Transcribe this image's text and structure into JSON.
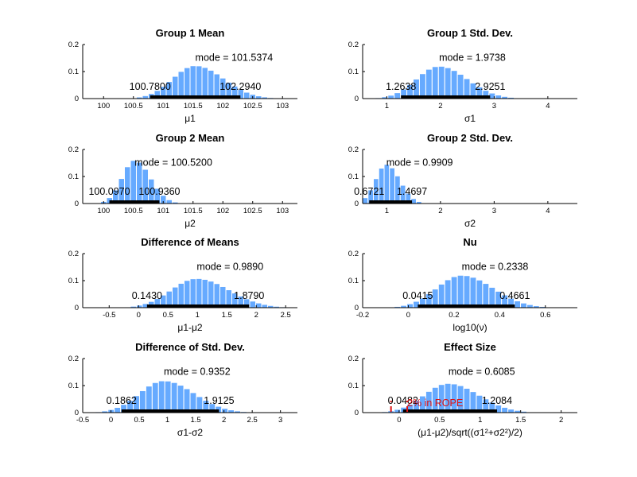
{
  "chart_data": [
    {
      "type": "bar",
      "title": "Group 1 Mean",
      "xlabel": "μ1",
      "xlim": [
        99.65,
        103.25
      ],
      "ylim": [
        0,
        0.2
      ],
      "xticks": [
        100,
        100.5,
        101,
        101.5,
        102,
        102.5,
        103
      ],
      "yticks": [
        0,
        0.1,
        0.2
      ],
      "mode": 101.5374,
      "mode_label": "mode = 101.5374",
      "hdi": [
        100.78,
        102.294
      ],
      "hdi_labels": [
        "100.7800",
        "102.2940"
      ],
      "peak_density": 0.122,
      "spread": 0.38,
      "bins": 36
    },
    {
      "type": "bar",
      "title": "Group 1 Std. Dev.",
      "xlabel": "σ1",
      "xlim": [
        0.55,
        4.55
      ],
      "ylim": [
        0,
        0.2
      ],
      "xticks": [
        1,
        2,
        3,
        4
      ],
      "yticks": [
        0,
        0.1,
        0.2
      ],
      "mode": 1.9738,
      "mode_label": "mode = 1.9738",
      "hdi": [
        1.2638,
        2.9251
      ],
      "hdi_labels": [
        "1.2638",
        "2.9251"
      ],
      "peak_density": 0.12,
      "spread": 0.42,
      "bins": 34
    },
    {
      "type": "bar",
      "title": "Group 2 Mean",
      "xlabel": "μ2",
      "xlim": [
        99.65,
        103.25
      ],
      "ylim": [
        0,
        0.2
      ],
      "xticks": [
        100,
        100.5,
        101,
        101.5,
        102,
        102.5,
        103
      ],
      "yticks": [
        0,
        0.1,
        0.2
      ],
      "mode": 100.52,
      "mode_label": "mode = 100.5200",
      "hdi": [
        100.097,
        100.936
      ],
      "hdi_labels": [
        "100.0970",
        "100.9360"
      ],
      "peak_density": 0.16,
      "spread": 0.21,
      "bins": 36
    },
    {
      "type": "bar",
      "title": "Group 2 Std. Dev.",
      "xlabel": "σ2",
      "xlim": [
        0.55,
        4.55
      ],
      "ylim": [
        0,
        0.2
      ],
      "xticks": [
        1,
        2,
        3,
        4
      ],
      "yticks": [
        0,
        0.1,
        0.2
      ],
      "mode": 0.9909,
      "mode_label": "mode = 0.9909",
      "hdi": [
        0.6721,
        1.4697
      ],
      "hdi_labels": [
        "0.6721",
        "1.4697"
      ],
      "peak_density": 0.145,
      "spread": 0.2,
      "bins": 40
    },
    {
      "type": "bar",
      "title": "Difference of Means",
      "xlabel": "μ1-μ2",
      "xlim": [
        -0.95,
        2.7
      ],
      "ylim": [
        0,
        0.2
      ],
      "xticks": [
        -0.5,
        0,
        0.5,
        1,
        1.5,
        2,
        2.5
      ],
      "yticks": [
        0,
        0.1,
        0.2
      ],
      "mode": 0.989,
      "mode_label": "mode = 0.9890",
      "hdi": [
        0.143,
        1.879
      ],
      "hdi_labels": [
        "0.1430",
        "1.8790"
      ],
      "peak_density": 0.108,
      "spread": 0.44,
      "bins": 36
    },
    {
      "type": "bar",
      "title": "Nu",
      "xlabel": "log10(ν)",
      "xlim": [
        -0.2,
        0.74
      ],
      "ylim": [
        0,
        0.2
      ],
      "xticks": [
        -0.2,
        0,
        0.2,
        0.4,
        0.6
      ],
      "yticks": [
        0,
        0.1,
        0.2
      ],
      "mode": 0.2338,
      "mode_label": "mode = 0.2338",
      "hdi": [
        0.0415,
        0.4661
      ],
      "hdi_labels": [
        "0.0415",
        "0.4661"
      ],
      "peak_density": 0.12,
      "spread": 0.11,
      "bins": 34
    },
    {
      "type": "bar",
      "title": "Difference of Std. Dev.",
      "xlabel": "σ1-σ2",
      "xlim": [
        -0.5,
        3.3
      ],
      "ylim": [
        0,
        0.2
      ],
      "xticks": [
        -0.5,
        0,
        0.5,
        1,
        1.5,
        2,
        2.5,
        3
      ],
      "yticks": [
        0,
        0.1,
        0.2
      ],
      "mode": 0.9352,
      "mode_label": "mode = 0.9352",
      "hdi": [
        0.1862,
        1.9125
      ],
      "hdi_labels": [
        "0.1862",
        "1.9125"
      ],
      "peak_density": 0.118,
      "spread": 0.43,
      "bins": 34
    },
    {
      "type": "bar",
      "title": "Effect Size",
      "xlabel": "(μ1-μ2)/sqrt((σ1²+σ2²)/2)",
      "xlim": [
        -0.45,
        2.2
      ],
      "ylim": [
        0,
        0.2
      ],
      "xticks": [
        0,
        0.5,
        1,
        1.5,
        2
      ],
      "yticks": [
        0,
        0.1,
        0.2
      ],
      "mode": 0.6085,
      "mode_label": "mode = 0.6085",
      "hdi": [
        0.0482,
        1.2084
      ],
      "hdi_labels": [
        "0.0482",
        "1.2084"
      ],
      "peak_density": 0.108,
      "spread": 0.3,
      "bins": 34,
      "rope": [
        -0.1,
        0.1
      ],
      "rope_label": "2% in ROPE"
    }
  ],
  "colors": {
    "bar": "#66aaff",
    "bar_edge": "#ffffff",
    "hdi": "#000000",
    "rope": "#dd1111",
    "axis": "#000000"
  }
}
